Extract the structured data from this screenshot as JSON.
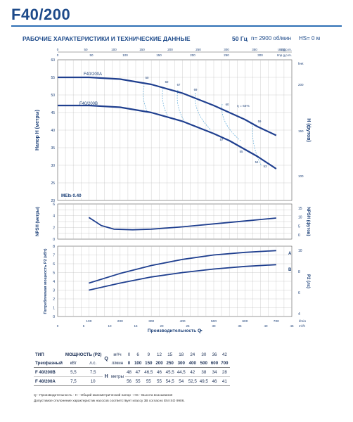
{
  "header": {
    "title": "F40/200",
    "subtitle": "РАБОЧИЕ ХАРАКТЕРИСТИКИ И ТЕХНИЧЕСКИЕ ДАННЫЕ",
    "frequency": "50 Гц",
    "speed": "n= 2900 об/мин",
    "suction_height": "HS= 0 м"
  },
  "chart_data": [
    {
      "type": "line",
      "name": "head",
      "ylabel": "Напор H (метры)",
      "ylabel_right": "H (футов)",
      "xlim": [
        0,
        750
      ],
      "ylim": [
        20,
        60
      ],
      "yticks": [
        "60",
        "55",
        "50",
        "45",
        "40",
        "35",
        "30",
        "25",
        "20"
      ],
      "right_ticks": [
        "feet",
        "200",
        "150",
        "100"
      ],
      "top_us_ticks": [
        "US g.p.m.",
        "0",
        "50",
        "100",
        "150",
        "200",
        "250",
        "300",
        "350",
        "400"
      ],
      "top_imp_ticks": [
        "Imp g.p.m.",
        "0",
        "50",
        "100",
        "150",
        "200",
        "250",
        "300"
      ],
      "series": [
        {
          "name": "F40/200A",
          "x": [
            0,
            100,
            200,
            300,
            400,
            500,
            550,
            600,
            640,
            700
          ],
          "y": [
            55,
            55,
            54.5,
            53,
            50.5,
            47,
            45,
            43,
            41,
            38.5
          ]
        },
        {
          "name": "F40/200B",
          "x": [
            0,
            100,
            200,
            300,
            400,
            500,
            550,
            600,
            640,
            700
          ],
          "y": [
            47,
            47,
            46.5,
            45,
            42.5,
            39,
            37,
            34.5,
            32.5,
            29
          ]
        }
      ],
      "efficiency_labels": [
        "50",
        "60",
        "67",
        "69",
        "60",
        "59",
        "57",
        "55",
        "54",
        "53"
      ],
      "efficiency_note": "η = 64%",
      "mei": "MEI≥ 0.40"
    },
    {
      "type": "line",
      "name": "npsh",
      "ylabel": "NPSH (метры)",
      "ylabel_right": "NPSH (футов)",
      "ylim": [
        0,
        6
      ],
      "yticks": [
        "6",
        "4",
        "2",
        "0"
      ],
      "right_ticks": [
        "15",
        "10",
        "5",
        "0"
      ],
      "series": [
        {
          "name": "NPSH",
          "x": [
            100,
            140,
            180,
            240,
            300,
            400,
            500,
            600,
            700
          ],
          "y": [
            3.7,
            2.3,
            1.7,
            1.6,
            1.7,
            2.1,
            2.6,
            3.1,
            3.6
          ]
        }
      ]
    },
    {
      "type": "line",
      "name": "power",
      "ylabel": "Потребляемая мощность P2 (кВт)",
      "ylabel_right": "P2 (лс)",
      "xlabel": "Производительность Q",
      "xlim": [
        0,
        750
      ],
      "ylim": [
        0,
        8
      ],
      "yticks": [
        "8",
        "7",
        "6",
        "5",
        "4",
        "3",
        "2",
        "1",
        "0"
      ],
      "right_ticks": [
        "10",
        "8",
        "6",
        "4"
      ],
      "x_lmin_ticks": [
        "100",
        "200",
        "300",
        "400",
        "500",
        "600",
        "700",
        "l/min"
      ],
      "x_m3h_ticks": [
        "0",
        "5",
        "10",
        "15",
        "20",
        "25",
        "30",
        "35",
        "40",
        "45",
        "m³/h"
      ],
      "series": [
        {
          "name": "A",
          "x": [
            100,
            200,
            300,
            400,
            500,
            600,
            700
          ],
          "y": [
            3.8,
            4.9,
            5.8,
            6.5,
            7.0,
            7.3,
            7.5
          ]
        },
        {
          "name": "B",
          "x": [
            100,
            200,
            300,
            400,
            500,
            600,
            700
          ],
          "y": [
            3.0,
            3.8,
            4.5,
            5.0,
            5.4,
            5.7,
            5.9
          ]
        }
      ]
    }
  ],
  "table": {
    "type_label": "ТИП",
    "power_label": "МОЩНОСТЬ (P2)",
    "three_phase": "Трехфазный",
    "kw": "кВт",
    "hp": "л.с.",
    "q_letter": "Q",
    "m3h": "м³/ч",
    "lmin": "л/мин",
    "h_letter": "H",
    "meters": "метры",
    "q_m3h": [
      "0",
      "6",
      "9",
      "12",
      "15",
      "18",
      "24",
      "30",
      "36",
      "42"
    ],
    "q_lmin": [
      "0",
      "100",
      "150",
      "200",
      "250",
      "300",
      "400",
      "500",
      "600",
      "700"
    ],
    "rows": [
      {
        "model": "F 40/200B",
        "kw": "5,5",
        "hp": "7,5",
        "h": [
          "48",
          "47",
          "46,5",
          "46",
          "45,5",
          "44,5",
          "42",
          "38",
          "34",
          "28"
        ]
      },
      {
        "model": "F 40/200A",
        "kw": "7,5",
        "hp": "10",
        "h": [
          "56",
          "55",
          "55",
          "55",
          "54,5",
          "54",
          "52,5",
          "49,5",
          "46",
          "41"
        ]
      }
    ]
  },
  "footnotes": [
    "Q - Производительность · H - Общий манометрический напор · HS - Высота всасывания",
    "Допустимое отклонение характеристик насосов соответствует классу 3B согласно EN ISO 9906."
  ],
  "colors": {
    "curve": "#1f3f8f",
    "dashed": "#5aa8d8",
    "grid": "#bcbcbc",
    "accent": "#2e6fb5"
  }
}
